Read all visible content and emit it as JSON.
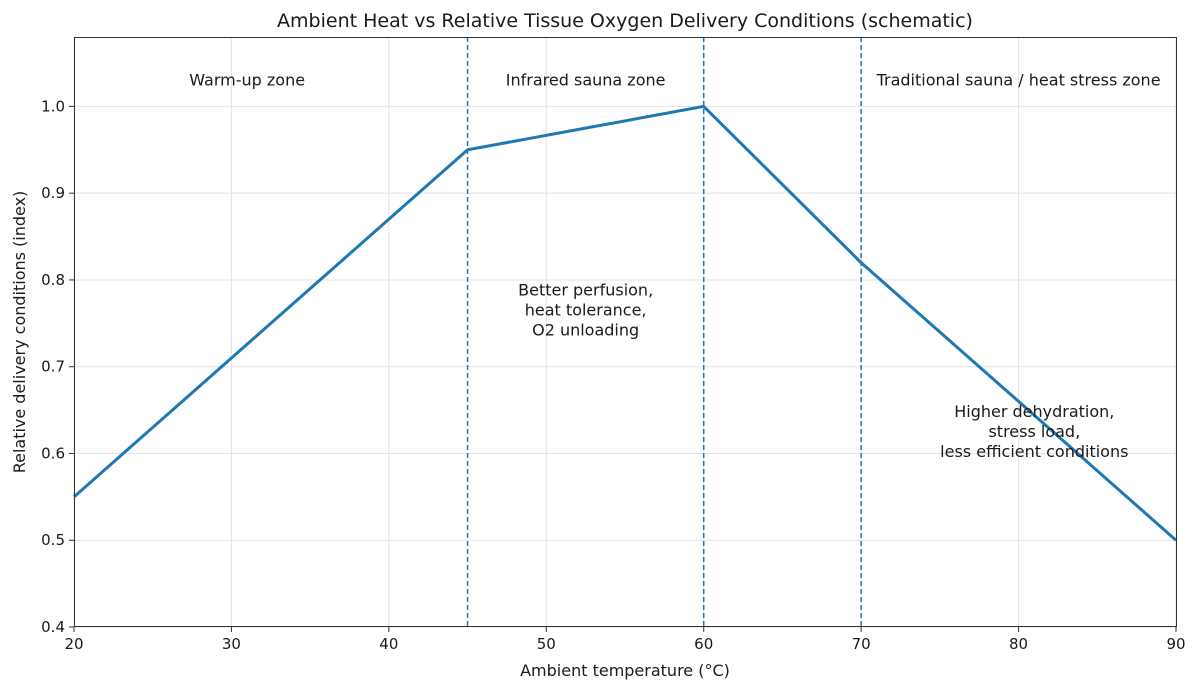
{
  "chart_data": {
    "type": "line",
    "title": "Ambient Heat vs Relative Tissue Oxygen Delivery Conditions (schematic)",
    "xlabel": "Ambient temperature (°C)",
    "ylabel": "Relative delivery conditions (index)",
    "xlim": [
      20,
      90
    ],
    "ylim": [
      0.4,
      1.08
    ],
    "xticks": [
      20,
      30,
      40,
      50,
      60,
      70,
      80,
      90
    ],
    "xtick_labels": [
      "20",
      "30",
      "40",
      "50",
      "60",
      "70",
      "80",
      "90"
    ],
    "yticks": [
      0.4,
      0.5,
      0.6,
      0.7,
      0.8,
      0.9,
      1.0
    ],
    "ytick_labels": [
      "0.4",
      "0.5",
      "0.6",
      "0.7",
      "0.8",
      "0.9",
      "1.0"
    ],
    "grid": true,
    "series": [
      {
        "x": [
          20,
          45,
          60,
          70,
          90
        ],
        "y": [
          0.55,
          0.95,
          1.0,
          0.82,
          0.5
        ],
        "color": "#1f77b4"
      }
    ],
    "vlines": [
      {
        "x": 45,
        "color": "#1f77b4",
        "style": "dashed"
      },
      {
        "x": 60,
        "color": "#1f77b4",
        "style": "dashed"
      },
      {
        "x": 70,
        "color": "#1f77b4",
        "style": "dashed"
      }
    ],
    "annotations": [
      {
        "x": 31,
        "y": 1.03,
        "lines": [
          "Warm-up zone"
        ]
      },
      {
        "x": 52.5,
        "y": 1.03,
        "lines": [
          "Infrared sauna zone"
        ]
      },
      {
        "x": 80,
        "y": 1.03,
        "lines": [
          "Traditional sauna / heat stress zone"
        ]
      },
      {
        "x": 52.5,
        "y": 0.765,
        "lines": [
          "Better perfusion,",
          "heat tolerance,",
          "O2 unloading"
        ]
      },
      {
        "x": 81,
        "y": 0.625,
        "lines": [
          "Higher dehydration,",
          "stress load,",
          "less efficient conditions"
        ]
      }
    ]
  }
}
